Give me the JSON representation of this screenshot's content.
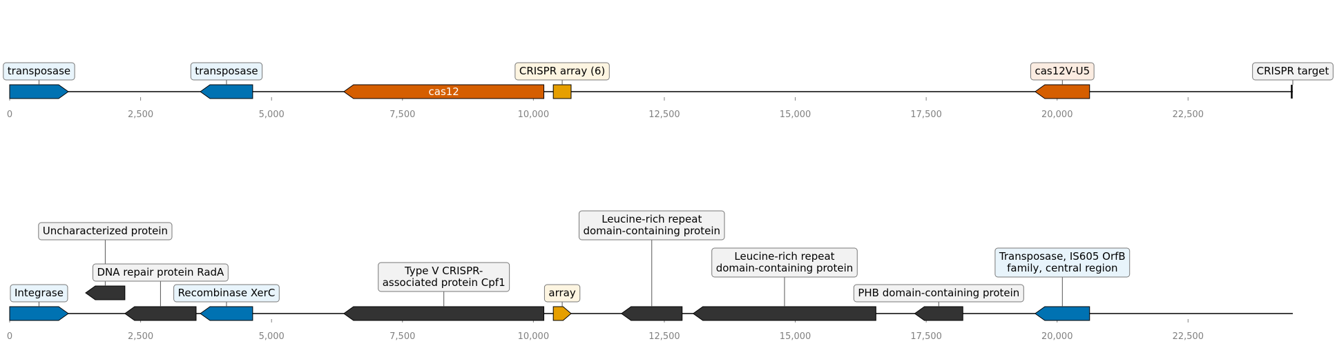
{
  "chart_data": {
    "type": "diagram",
    "tracks": [
      {
        "name": "top-track",
        "x_range": [
          0,
          24500
        ],
        "ticks": [
          0,
          2500,
          5000,
          7500,
          10000,
          12500,
          15000,
          17500,
          20000,
          22500
        ],
        "tick_labels": [
          "0",
          "2,500",
          "5,000",
          "7,500",
          "10,000",
          "12,500",
          "15,000",
          "17,500",
          "20,000",
          "22,500"
        ],
        "features": [
          {
            "label": "transposase",
            "start": 0,
            "end": 1120,
            "strand": 1,
            "color": "#0072b2",
            "box_color": "#e8f4fb",
            "label_pos": "above"
          },
          {
            "label": "transposase",
            "start": 3640,
            "end": 4640,
            "strand": -1,
            "color": "#0072b2",
            "box_color": "#e8f4fb",
            "label_pos": "above"
          },
          {
            "label": "cas12",
            "start": 6380,
            "end": 10200,
            "strand": -1,
            "color": "#d55e00",
            "text_color": "#ffffff",
            "label_pos": "inside"
          },
          {
            "label": "CRISPR array (6)",
            "start": 10380,
            "end": 10720,
            "strand": 0,
            "color": "#e69f00",
            "box_color": "#fdf5e1",
            "label_pos": "above"
          },
          {
            "label": "cas12V-U5",
            "start": 19580,
            "end": 20620,
            "strand": -1,
            "color": "#d55e00",
            "box_color": "#fbece1",
            "label_pos": "above"
          },
          {
            "label": "CRISPR target",
            "start": 24480,
            "end": 24520,
            "strand": 0,
            "color": "#000000",
            "box_color": "#f2f2f2",
            "label_pos": "above",
            "kind": "marker"
          }
        ]
      },
      {
        "name": "bottom-track",
        "x_range": [
          0,
          24500
        ],
        "ticks": [
          0,
          2500,
          5000,
          7500,
          10000,
          12500,
          15000,
          17500,
          20000,
          22500
        ],
        "tick_labels": [
          "0",
          "2,500",
          "5,000",
          "7,500",
          "10,000",
          "12,500",
          "15,000",
          "17,500",
          "20,000",
          "22,500"
        ],
        "features": [
          {
            "label": "Integrase",
            "start": 0,
            "end": 1120,
            "strand": 1,
            "color": "#0072b2",
            "box_color": "#e8f4fb",
            "label_pos": "above",
            "level": 1
          },
          {
            "label": "Uncharacterized protein",
            "start": 1450,
            "end": 2200,
            "strand": -1,
            "color": "#333333",
            "box_color": "#f2f2f2",
            "label_pos": "above",
            "level": 3,
            "elevated": true
          },
          {
            "label": "DNA repair protein RadA",
            "start": 2200,
            "end": 3560,
            "strand": -1,
            "color": "#333333",
            "box_color": "#f2f2f2",
            "label_pos": "above",
            "level": 2
          },
          {
            "label": "Recombinase XerC",
            "start": 3640,
            "end": 4640,
            "strand": -1,
            "color": "#0072b2",
            "box_color": "#e8f4fb",
            "label_pos": "above",
            "level": 1
          },
          {
            "label": "Type V CRISPR-\nassociated protein Cpf1",
            "start": 6380,
            "end": 10200,
            "strand": -1,
            "color": "#333333",
            "box_color": "#f2f2f2",
            "label_pos": "above",
            "level": 1.5
          },
          {
            "label": "array",
            "start": 10380,
            "end": 10720,
            "strand": 1,
            "color": "#e69f00",
            "box_color": "#fdf5e1",
            "label_pos": "above",
            "level": 1
          },
          {
            "label": "Leucine-rich repeat\ndomain-containing protein",
            "start": 11680,
            "end": 12840,
            "strand": -1,
            "color": "#333333",
            "box_color": "#f2f2f2",
            "label_pos": "above",
            "level": 4
          },
          {
            "label": "Leucine-rich repeat\ndomain-containing protein",
            "start": 13050,
            "end": 16540,
            "strand": -1,
            "color": "#333333",
            "box_color": "#f2f2f2",
            "label_pos": "above",
            "level": 2.2
          },
          {
            "label": "PHB domain-containing protein",
            "start": 17280,
            "end": 18200,
            "strand": -1,
            "color": "#333333",
            "box_color": "#f2f2f2",
            "label_pos": "above",
            "level": 1
          },
          {
            "label": "Transposase, IS605 OrfB\nfamily, central region",
            "start": 19580,
            "end": 20620,
            "strand": -1,
            "color": "#0072b2",
            "box_color": "#e8f4fb",
            "label_pos": "above",
            "level": 2.2
          }
        ]
      }
    ]
  }
}
